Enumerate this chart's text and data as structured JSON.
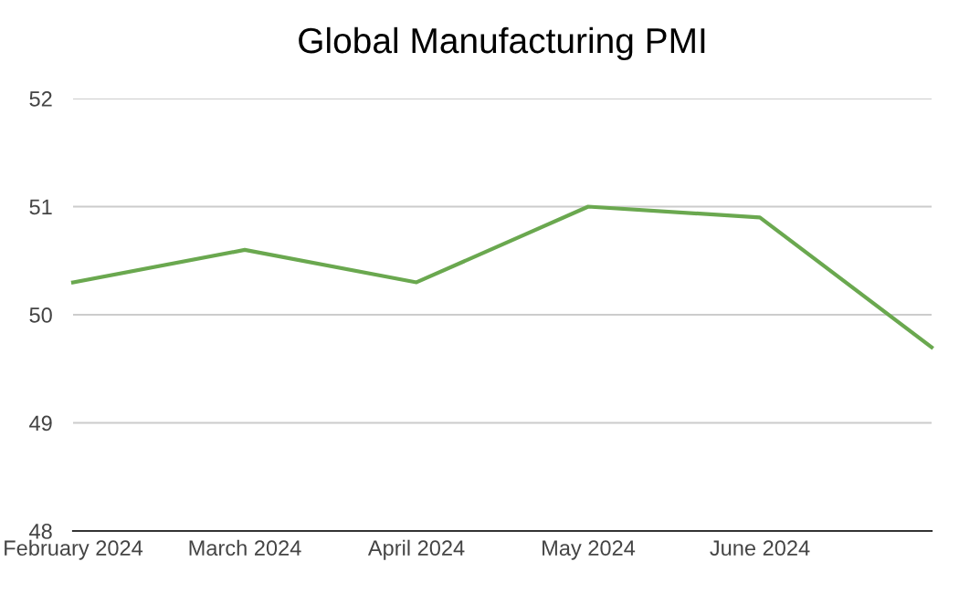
{
  "chart_data": {
    "type": "line",
    "title": "Global Manufacturing PMI",
    "categories": [
      "February 2024",
      "March 2024",
      "April 2024",
      "May 2024",
      "June 2024",
      null
    ],
    "series": [
      {
        "color": "#6aa84f",
        "values": [
          50.3,
          50.6,
          50.3,
          51.0,
          50.9,
          49.7
        ]
      }
    ],
    "ylim": [
      48,
      52
    ],
    "yticks": [
      48,
      49,
      50,
      51,
      52
    ],
    "grid": "y",
    "legend": false
  }
}
